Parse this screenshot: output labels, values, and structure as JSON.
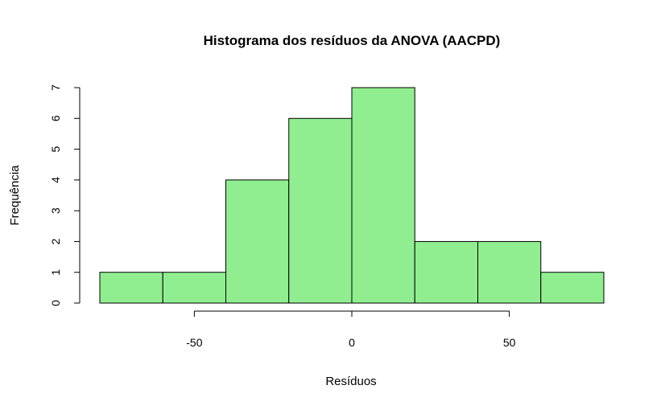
{
  "chart_data": {
    "type": "bar",
    "subtype": "histogram",
    "title": "Histograma dos resíduos da ANOVA (AACPD)",
    "xlabel": "Resíduos",
    "ylabel": "Frequência",
    "bins": [
      {
        "start": -80,
        "end": -60,
        "count": 1
      },
      {
        "start": -60,
        "end": -40,
        "count": 1
      },
      {
        "start": -40,
        "end": -20,
        "count": 4
      },
      {
        "start": -20,
        "end": 0,
        "count": 6
      },
      {
        "start": 0,
        "end": 20,
        "count": 7
      },
      {
        "start": 20,
        "end": 40,
        "count": 2
      },
      {
        "start": 40,
        "end": 60,
        "count": 2
      },
      {
        "start": 60,
        "end": 80,
        "count": 1
      }
    ],
    "x_ticks": [
      -50,
      0,
      50
    ],
    "x_tick_labels": [
      "-50",
      "0",
      "50"
    ],
    "y_ticks": [
      0,
      1,
      2,
      3,
      4,
      5,
      6,
      7
    ],
    "y_tick_labels": [
      "0",
      "1",
      "2",
      "3",
      "4",
      "5",
      "6",
      "7"
    ],
    "xlim": [
      -80,
      80
    ],
    "ylim": [
      0,
      7
    ],
    "bar_color": "#90ee90",
    "grid": false
  }
}
